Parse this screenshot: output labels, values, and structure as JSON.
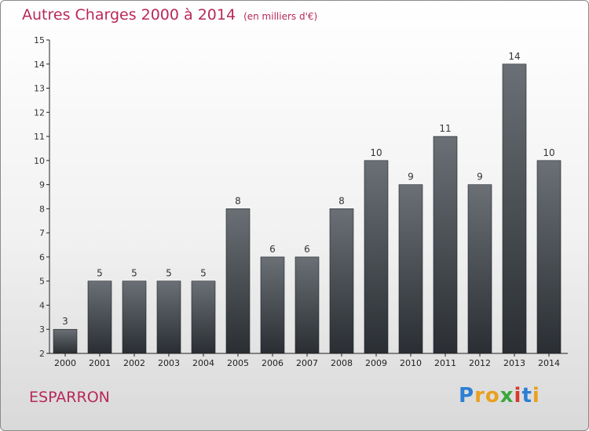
{
  "title": "Autres Charges 2000 à 2014",
  "unit_label": "(en milliers d'€)",
  "commune": "ESPARRON",
  "logo": {
    "text": "Proxiti",
    "letters": [
      {
        "ch": "P",
        "color": "#2b7fd4"
      },
      {
        "ch": "r",
        "color": "#e8a020"
      },
      {
        "ch": "o",
        "color": "#e8a020"
      },
      {
        "ch": "x",
        "color": "#3aa83a"
      },
      {
        "ch": "i",
        "color": "#d63a2a"
      },
      {
        "ch": "t",
        "color": "#2b7fd4"
      },
      {
        "ch": "i",
        "color": "#e8a020"
      }
    ]
  },
  "colors": {
    "accent": "#b8285a",
    "bar_top": "#6a7075",
    "bar_bottom": "#2a2e33",
    "axis": "#222222"
  },
  "chart_data": {
    "type": "bar",
    "title": "Autres Charges 2000 à 2014",
    "subtitle": "(en milliers d'€)",
    "xlabel": "",
    "ylabel": "",
    "categories": [
      "2000",
      "2001",
      "2002",
      "2003",
      "2004",
      "2005",
      "2006",
      "2007",
      "2008",
      "2009",
      "2010",
      "2011",
      "2012",
      "2013",
      "2014"
    ],
    "values": [
      3,
      5,
      5,
      5,
      5,
      8,
      6,
      6,
      8,
      10,
      9,
      11,
      9,
      14,
      10
    ],
    "data_labels": [
      "3",
      "5",
      "5",
      "5",
      "5",
      "8",
      "6",
      "6",
      "8",
      "10",
      "9",
      "11",
      "9",
      "14",
      "10"
    ],
    "yticks": [
      2,
      3,
      4,
      5,
      6,
      7,
      8,
      9,
      10,
      11,
      12,
      13,
      14,
      15
    ],
    "ylim": [
      2,
      15
    ],
    "grid": false,
    "legend": "none"
  }
}
